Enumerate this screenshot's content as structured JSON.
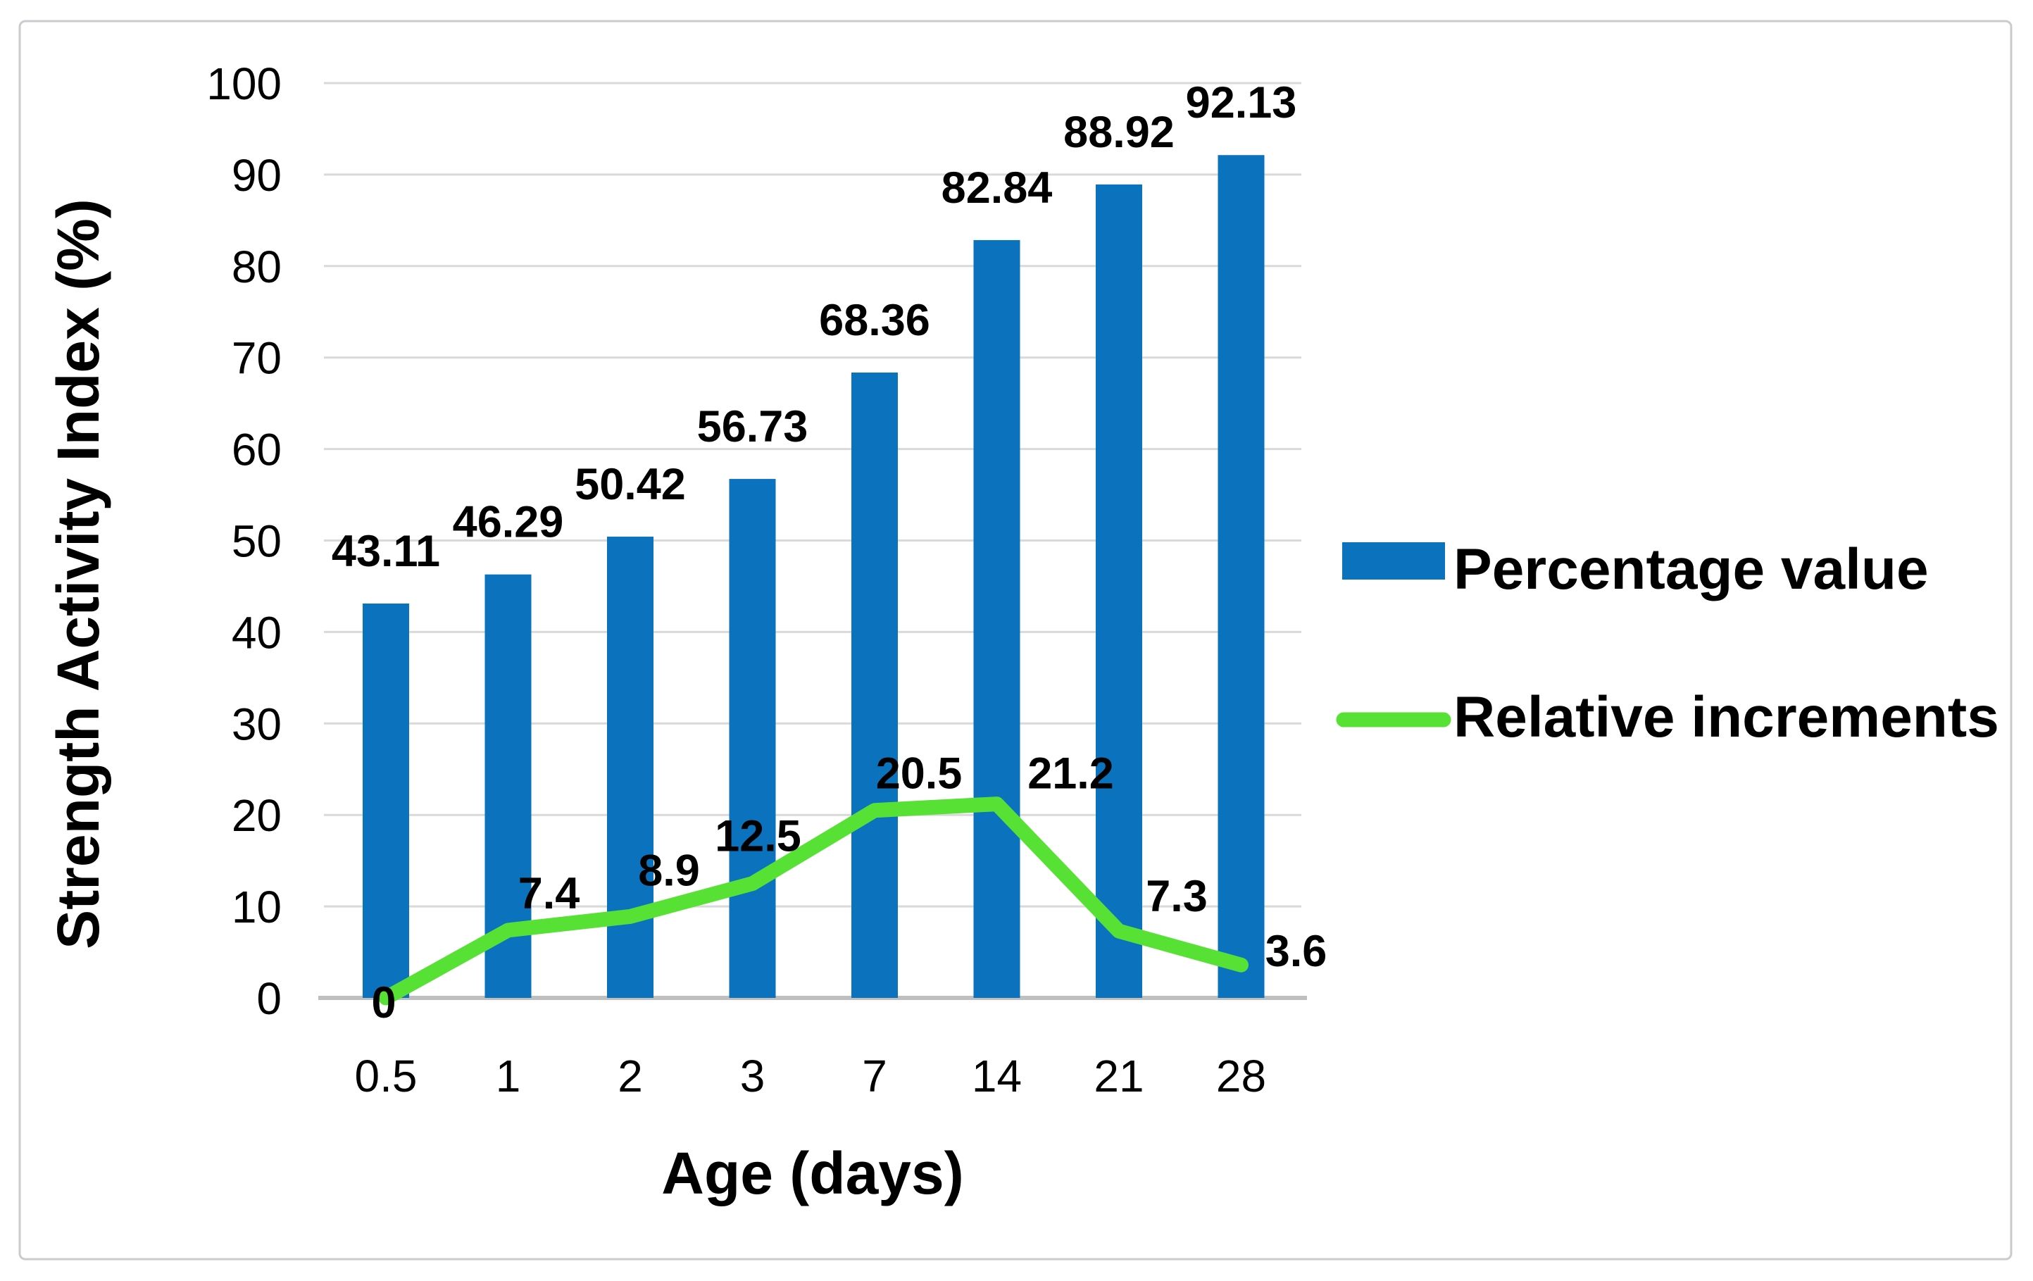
{
  "figure": {
    "background": "#ffffff",
    "border_color": "#c9cbce"
  },
  "chart_data": {
    "type": "bar+line",
    "title": "",
    "xlabel": "Age (days)",
    "ylabel": "Strength Activity Index (%)",
    "categories": [
      "0.5",
      "1",
      "2",
      "3",
      "7",
      "14",
      "21",
      "28"
    ],
    "ylim": [
      0,
      100
    ],
    "ytick_step": 10,
    "grid": "horizontal",
    "gridline_color": "#d9d9d9",
    "axisline_color": "#bfbfbf",
    "legend_position": "right",
    "series": [
      {
        "name": "Percentage value",
        "type": "bar",
        "color": "#0b72be",
        "values": [
          43.11,
          46.29,
          50.42,
          56.73,
          68.36,
          82.84,
          88.92,
          92.13
        ],
        "labels": [
          "43.11",
          "46.29",
          "50.42",
          "56.73",
          "68.36",
          "82.84",
          "88.92",
          "92.13"
        ],
        "label_color": "#000000"
      },
      {
        "name": "Relative increments",
        "type": "line",
        "color": "#58e135",
        "values": [
          0,
          7.4,
          8.9,
          12.5,
          20.5,
          21.2,
          7.3,
          3.6
        ],
        "labels": [
          "0",
          "7.4",
          "8.9",
          "12.5",
          "20.5",
          "21.2",
          "7.3",
          "3.6"
        ],
        "label_colors": [
          "#000000",
          "#000000",
          "#000000",
          "#000000",
          "#e91bc6",
          "#e91bc6",
          "#000000",
          "#000000"
        ]
      }
    ]
  },
  "legend": {
    "items": [
      {
        "label": "Percentage value",
        "swatch": "bar",
        "color": "#0b72be"
      },
      {
        "label": "Relative increments",
        "swatch": "line",
        "color": "#58e135"
      }
    ]
  }
}
